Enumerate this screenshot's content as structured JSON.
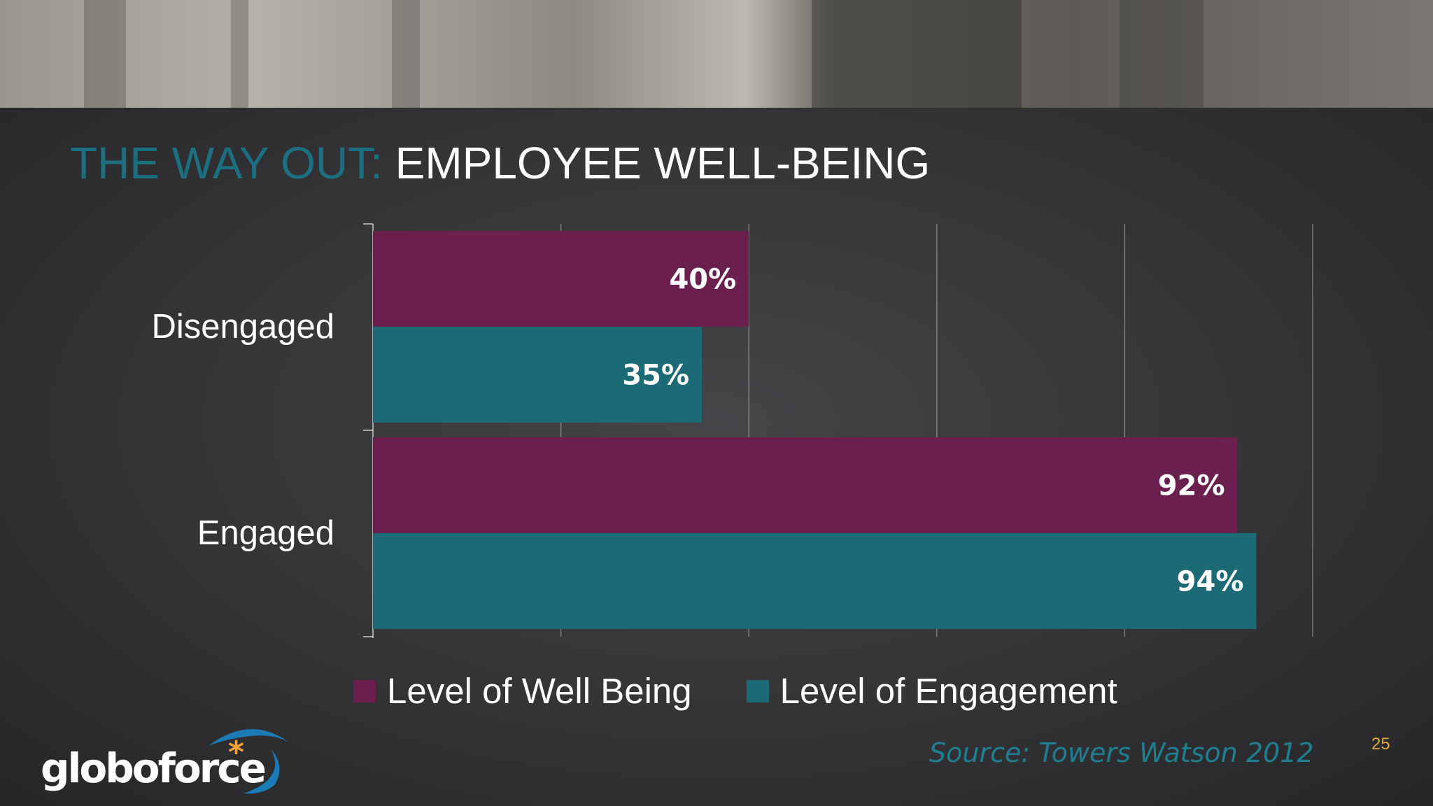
{
  "title": {
    "part1": "THE WAY OUT:",
    "part2": "EMPLOYEE WELL-BEING"
  },
  "chart_data": {
    "type": "bar",
    "orientation": "horizontal",
    "categories": [
      "Disengaged",
      "Engaged"
    ],
    "series": [
      {
        "name": "Level of Well Being",
        "color": "#6b1f4f",
        "values": [
          40,
          92
        ],
        "labels": [
          "40%",
          "92%"
        ]
      },
      {
        "name": "Level of Engagement",
        "color": "#1b6a76",
        "values": [
          35,
          94
        ],
        "labels": [
          "35%",
          "94%"
        ]
      }
    ],
    "xlim": [
      0,
      100
    ],
    "grid": true,
    "legend": "bottom"
  },
  "source": "Source:  Towers Watson 2012",
  "page_number": "25",
  "logo": {
    "text": "globoforce",
    "mark": "*",
    "colors": {
      "swoosh": "#1a7bb6",
      "star": "#f4a33a"
    }
  }
}
